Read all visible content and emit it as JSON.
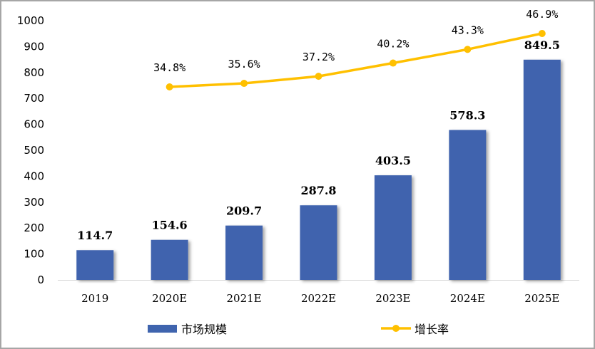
{
  "chart_data": {
    "type": "bar+line",
    "categories": [
      "2019",
      "2020E",
      "2021E",
      "2022E",
      "2023E",
      "2024E",
      "2025E"
    ],
    "series": [
      {
        "name": "市场规模",
        "type": "bar",
        "values": [
          114.7,
          154.6,
          209.7,
          287.8,
          403.5,
          578.3,
          849.5
        ],
        "labels": [
          "114.7",
          "154.6",
          "209.7",
          "287.8",
          "403.5",
          "578.3",
          "849.5"
        ],
        "color": "#3F64AE"
      },
      {
        "name": "增长率",
        "type": "line",
        "axis": "secondary-hidden",
        "values": [
          null,
          34.8,
          35.6,
          37.2,
          40.2,
          43.3,
          46.9
        ],
        "labels": [
          "",
          "34.8%",
          "35.6%",
          "37.2%",
          "40.2%",
          "43.3%",
          "46.9%"
        ],
        "color": "#FFC000"
      }
    ],
    "yticks": [
      "0",
      "100",
      "200",
      "300",
      "400",
      "500",
      "600",
      "700",
      "800",
      "900",
      "1000"
    ],
    "ylim": [
      0,
      1000
    ],
    "grid": false,
    "legend": "bottom"
  }
}
